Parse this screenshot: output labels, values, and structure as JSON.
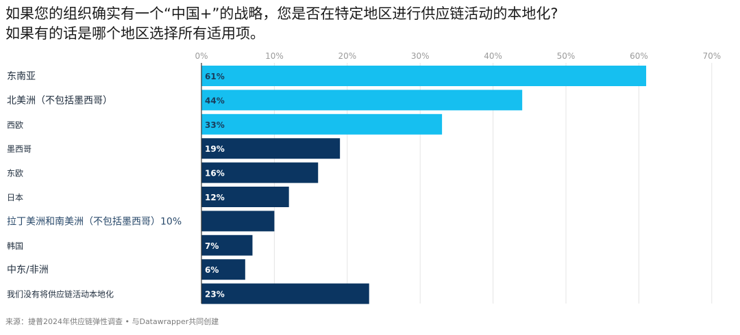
{
  "chart_data": {
    "type": "bar",
    "orientation": "horizontal",
    "title_lines": [
      "如果您的组织确实有一个“中国+”的战略，您是否在特定地区进行供应链活动的本地化?",
      "如果有的话是哪个地区选择所有适用项。"
    ],
    "categories": [
      "东南亚",
      "北美洲（不包括墨西哥）",
      "西欧",
      "墨西哥",
      "东欧",
      "日本",
      "拉丁美洲和南美洲（不包括墨西哥）10%",
      "韩国",
      "中东/非洲",
      "我们没有将供应链活动本地化"
    ],
    "values": [
      61,
      44,
      33,
      19,
      16,
      12,
      10,
      7,
      6,
      23
    ],
    "value_labels": [
      "61%",
      "44%",
      "33%",
      "19%",
      "16%",
      "12%",
      "",
      "7%",
      "6%",
      "23%"
    ],
    "x_ticks": [
      0,
      10,
      20,
      30,
      40,
      50,
      60,
      70
    ],
    "x_tick_labels": [
      "0%",
      "10%",
      "20%",
      "30%",
      "40%",
      "50%",
      "60%",
      "70%"
    ],
    "xlim": [
      0,
      70
    ],
    "grid": true,
    "colors": {
      "highlight": "#16bff0",
      "default": "#0b3561",
      "highlight_text": "#1a3d5c",
      "default_text": "#ffffff"
    },
    "highlight_count": 3,
    "source": "来源：捷普2024年供应链弹性调查 • 与Datawrapper共同创建"
  }
}
